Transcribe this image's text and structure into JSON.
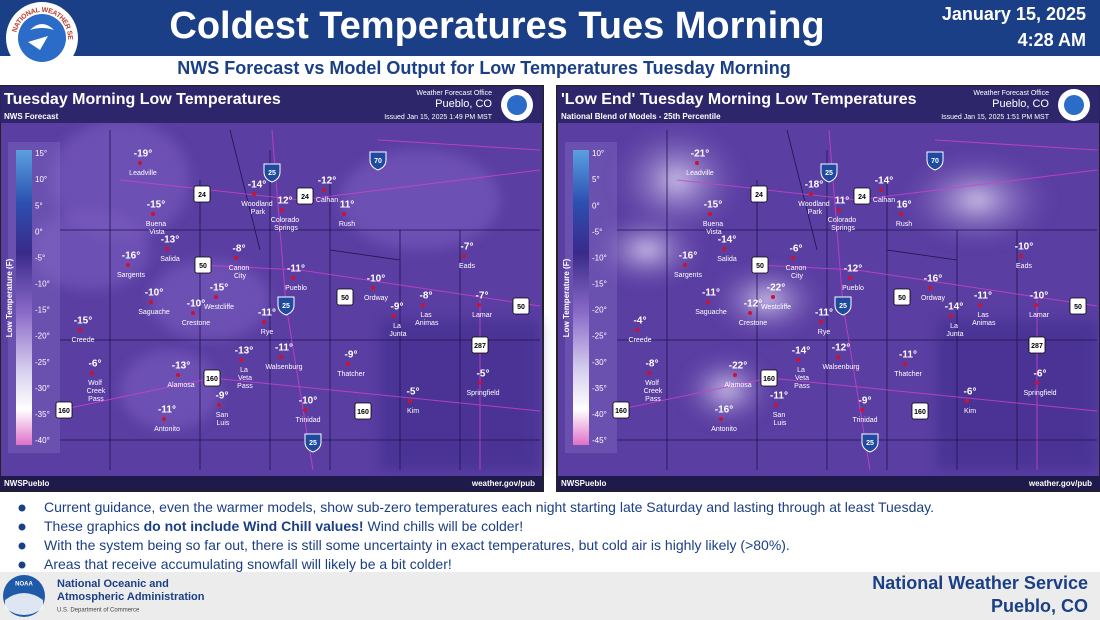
{
  "header": {
    "title": "Coldest Temperatures Tues Morning",
    "date": "January 15, 2025",
    "time": "4:28 AM",
    "logo_text": "NATIONAL WEATHER SERVICE"
  },
  "subtitle": "NWS Forecast vs Model Output for Low Temperatures Tuesday Morning",
  "panels": [
    {
      "title": "Tuesday Morning Low Temperatures",
      "source": "NWS Forecast",
      "office_label": "Weather Forecast Office",
      "office": "Pueblo, CO",
      "issued": "Issued Jan 15, 2025 1:49 PM MST",
      "legend_title": "Low Temperature (F)",
      "legend_ticks": [
        "15°",
        "10°",
        "5°",
        "0°",
        "-5°",
        "-10°",
        "-15°",
        "-20°",
        "-25°",
        "-30°",
        "-35°",
        "-40°"
      ],
      "footer_left": "NWSPueblo",
      "footer_right": "weather.gov/pub",
      "cities": [
        {
          "name": "Leadville",
          "temp": "-19°"
        },
        {
          "name": "Buena Vista",
          "temp": "-15°"
        },
        {
          "name": "Salida",
          "temp": "-13°"
        },
        {
          "name": "Sargents",
          "temp": "-16°"
        },
        {
          "name": "Saguache",
          "temp": "-10°"
        },
        {
          "name": "Creede",
          "temp": "-15°"
        },
        {
          "name": "Wolf Creek Pass",
          "temp": "-6°"
        },
        {
          "name": "Alamosa",
          "temp": "-13°"
        },
        {
          "name": "Antonito",
          "temp": "-11°"
        },
        {
          "name": "San Luis",
          "temp": "-9°"
        },
        {
          "name": "La Veta Pass",
          "temp": "-13°"
        },
        {
          "name": "Crestone",
          "temp": "-10°"
        },
        {
          "name": "Westcliffe",
          "temp": "-15°"
        },
        {
          "name": "Canon City",
          "temp": "-8°"
        },
        {
          "name": "Rye",
          "temp": "-11°"
        },
        {
          "name": "Walsenburg",
          "temp": "-11°"
        },
        {
          "name": "Trinidad",
          "temp": "-10°"
        },
        {
          "name": "Woodland Park",
          "temp": "-14°"
        },
        {
          "name": "Colorado Springs",
          "temp": "12°"
        },
        {
          "name": "Calhan",
          "temp": "-12°"
        },
        {
          "name": "Rush",
          "temp": "11°"
        },
        {
          "name": "Pueblo",
          "temp": "-11°"
        },
        {
          "name": "Ordway",
          "temp": "-10°"
        },
        {
          "name": "La Junta",
          "temp": "-9°"
        },
        {
          "name": "Las Animas",
          "temp": "-8°"
        },
        {
          "name": "Lamar",
          "temp": "-7°"
        },
        {
          "name": "Eads",
          "temp": "-7°"
        },
        {
          "name": "Thatcher",
          "temp": "-9°"
        },
        {
          "name": "Kim",
          "temp": "-5°"
        },
        {
          "name": "Springfield",
          "temp": "-5°"
        }
      ],
      "shields": [
        "25",
        "70",
        "24",
        "24",
        "50",
        "25",
        "50",
        "50",
        "287",
        "160",
        "160",
        "160",
        "25"
      ]
    },
    {
      "title": "'Low End' Tuesday Morning Low Temperatures",
      "source": "National Blend of Models - 25th Percentile",
      "office_label": "Weather Forecast Office",
      "office": "Pueblo, CO",
      "issued": "Issued Jan 15, 2025 1:51 PM MST",
      "legend_title": "Low Temperature (F)",
      "legend_ticks": [
        "10°",
        "5°",
        "0°",
        "-5°",
        "-10°",
        "-15°",
        "-20°",
        "-25°",
        "-30°",
        "-35°",
        "-40°",
        "-45°"
      ],
      "footer_left": "NWSPueblo",
      "footer_right": "weather.gov/pub",
      "cities": [
        {
          "name": "Leadville",
          "temp": "-21°"
        },
        {
          "name": "Buena Vista",
          "temp": "-15°"
        },
        {
          "name": "Salida",
          "temp": "-14°"
        },
        {
          "name": "Sargents",
          "temp": "-16°"
        },
        {
          "name": "Saguache",
          "temp": "-11°"
        },
        {
          "name": "Creede",
          "temp": "-4°"
        },
        {
          "name": "Wolf Creek Pass",
          "temp": "-8°"
        },
        {
          "name": "Alamosa",
          "temp": "-22°"
        },
        {
          "name": "Antonito",
          "temp": "-16°"
        },
        {
          "name": "San Luis",
          "temp": "-11°"
        },
        {
          "name": "La Veta Pass",
          "temp": "-14°"
        },
        {
          "name": "Crestone",
          "temp": "-12°"
        },
        {
          "name": "Westcliffe",
          "temp": "-22°"
        },
        {
          "name": "Canon City",
          "temp": "-6°"
        },
        {
          "name": "Rye",
          "temp": "-11°"
        },
        {
          "name": "Walsenburg",
          "temp": "-12°"
        },
        {
          "name": "Trinidad",
          "temp": "-9°"
        },
        {
          "name": "Woodland Park",
          "temp": "-18°"
        },
        {
          "name": "Colorado Springs",
          "temp": "11°"
        },
        {
          "name": "Calhan",
          "temp": "-14°"
        },
        {
          "name": "Rush",
          "temp": "16°"
        },
        {
          "name": "Pueblo",
          "temp": "-12°"
        },
        {
          "name": "Ordway",
          "temp": "-16°"
        },
        {
          "name": "La Junta",
          "temp": "-14°"
        },
        {
          "name": "Las Animas",
          "temp": "-11°"
        },
        {
          "name": "Lamar",
          "temp": "-10°"
        },
        {
          "name": "Eads",
          "temp": "-10°"
        },
        {
          "name": "Thatcher",
          "temp": "-11°"
        },
        {
          "name": "Kim",
          "temp": "-6°"
        },
        {
          "name": "Springfield",
          "temp": "-6°"
        }
      ],
      "shields": [
        "25",
        "70",
        "24",
        "24",
        "50",
        "25",
        "50",
        "50",
        "287",
        "160",
        "160",
        "160",
        "25"
      ]
    }
  ],
  "bullets": [
    [
      "Current guidance, even the warmer models, show sub-zero temperatures each night starting late Saturday and lasting through at least Tuesday."
    ],
    [
      "These graphics ",
      "do not include Wind Chill values!",
      " Wind chills will be colder!"
    ],
    [
      "With the system being so far out, there is still some uncertainty in exact temperatures, but cold air is highly likely (>80%)."
    ],
    [
      "Areas that receive accumulating snowfall will likely be a bit colder!"
    ]
  ],
  "footer": {
    "agency_line1": "National Oceanic and",
    "agency_line2": "Atmospheric Administration",
    "department": "U.S. Department of Commerce",
    "noaa": "NOAA",
    "nws": "National Weather Service",
    "office": "Pueblo, CO"
  }
}
